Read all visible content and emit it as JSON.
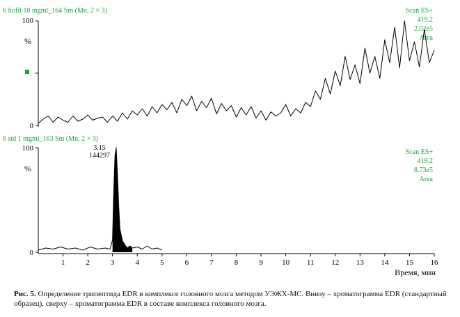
{
  "chart_data": [
    {
      "type": "line",
      "title": "6 liofil 10 mgml_164 Sm (Mn, 2 × 3)",
      "ylabel": "%",
      "yticks": [
        "100",
        "0"
      ],
      "ylim": [
        0,
        100
      ],
      "xlim": [
        0,
        16
      ],
      "info": [
        "Scan ES+",
        "419.2",
        "2.02e5",
        "Area"
      ],
      "series": [
        {
          "x": [
            0.0,
            0.2,
            0.4,
            0.6,
            0.8,
            1.0,
            1.2,
            1.4,
            1.6,
            1.8,
            2.0,
            2.2,
            2.4,
            2.6,
            2.8,
            3.0,
            3.2,
            3.4,
            3.6,
            3.8,
            4.0,
            4.2,
            4.4,
            4.6,
            4.8,
            5.0,
            5.2,
            5.4,
            5.6,
            5.8,
            6.0,
            6.2,
            6.4,
            6.6,
            6.8,
            7.0,
            7.2,
            7.4,
            7.6,
            7.8,
            8.0,
            8.2,
            8.4,
            8.6,
            8.8,
            9.0,
            9.2,
            9.4,
            9.6,
            9.8,
            10.0,
            10.2,
            10.4,
            10.6,
            10.8,
            11.0,
            11.2,
            11.4,
            11.6,
            11.8,
            12.0,
            12.2,
            12.4,
            12.6,
            12.8,
            13.0,
            13.2,
            13.4,
            13.6,
            13.8,
            14.0,
            14.2,
            14.4,
            14.6,
            14.8,
            15.0,
            15.2,
            15.4,
            15.6,
            15.8,
            16.0
          ],
          "y": [
            2,
            6,
            9,
            3,
            8,
            5,
            3,
            9,
            4,
            6,
            10,
            5,
            7,
            8,
            3,
            9,
            4,
            12,
            6,
            14,
            10,
            16,
            9,
            18,
            12,
            20,
            15,
            22,
            12,
            25,
            19,
            28,
            14,
            23,
            17,
            26,
            11,
            21,
            14,
            19,
            8,
            17,
            10,
            18,
            7,
            14,
            5,
            13,
            9,
            12,
            20,
            9,
            16,
            12,
            22,
            18,
            33,
            25,
            45,
            30,
            52,
            38,
            66,
            44,
            58,
            40,
            74,
            50,
            66,
            45,
            82,
            60,
            94,
            55,
            100,
            62,
            80,
            56,
            92,
            60,
            72
          ]
        }
      ],
      "shaded_peak": {
        "x": [
          3.05,
          3.3
        ],
        "color": "#000000"
      }
    },
    {
      "type": "line",
      "title": "6 std 1 mgml_163 Sm (Mn, 2 × 3)",
      "ylabel": "%",
      "yticks": [
        "100",
        "0"
      ],
      "ylim": [
        0,
        100
      ],
      "xlim": [
        0,
        16
      ],
      "info": [
        "Scan ES+",
        "419.2",
        "8.73e5",
        "Area"
      ],
      "peak_label": {
        "rt": "3.15",
        "area": "144297"
      },
      "series": [
        {
          "x": [
            0.0,
            0.3,
            0.6,
            0.9,
            1.2,
            1.5,
            1.8,
            2.1,
            2.4,
            2.7,
            2.9,
            3.0,
            3.05,
            3.1,
            3.15,
            3.2,
            3.25,
            3.3,
            3.4,
            3.5,
            3.6,
            3.7,
            3.8,
            4.0,
            4.2,
            4.4,
            4.6,
            4.8,
            5.0
          ],
          "y": [
            2,
            4,
            3,
            5,
            3,
            4,
            2,
            5,
            3,
            4,
            3,
            12,
            60,
            92,
            100,
            74,
            44,
            22,
            11,
            7,
            4,
            6,
            4,
            5,
            3,
            6,
            3,
            4,
            2
          ]
        }
      ],
      "shaded_peak": {
        "x": [
          2.95,
          3.9
        ],
        "color": "#000000"
      }
    }
  ],
  "xaxis": {
    "ticks": [
      "1",
      "2",
      "3",
      "4",
      "5",
      "6",
      "7",
      "8",
      "9",
      "10",
      "11",
      "12",
      "13",
      "14",
      "15",
      "16"
    ],
    "label": "Время, мин"
  },
  "marker_color": "#19a33a",
  "info_color": "#19a33a",
  "caption": {
    "prefix": "Рис. 5.",
    "text": " Определение трипептида EDR в комплексе головного мозга методом УЭЖХ-МС. Внизу – хроматограмма EDR (стандартный образец), сверху – хроматограмма EDR в составе комплекса головного мозга."
  }
}
